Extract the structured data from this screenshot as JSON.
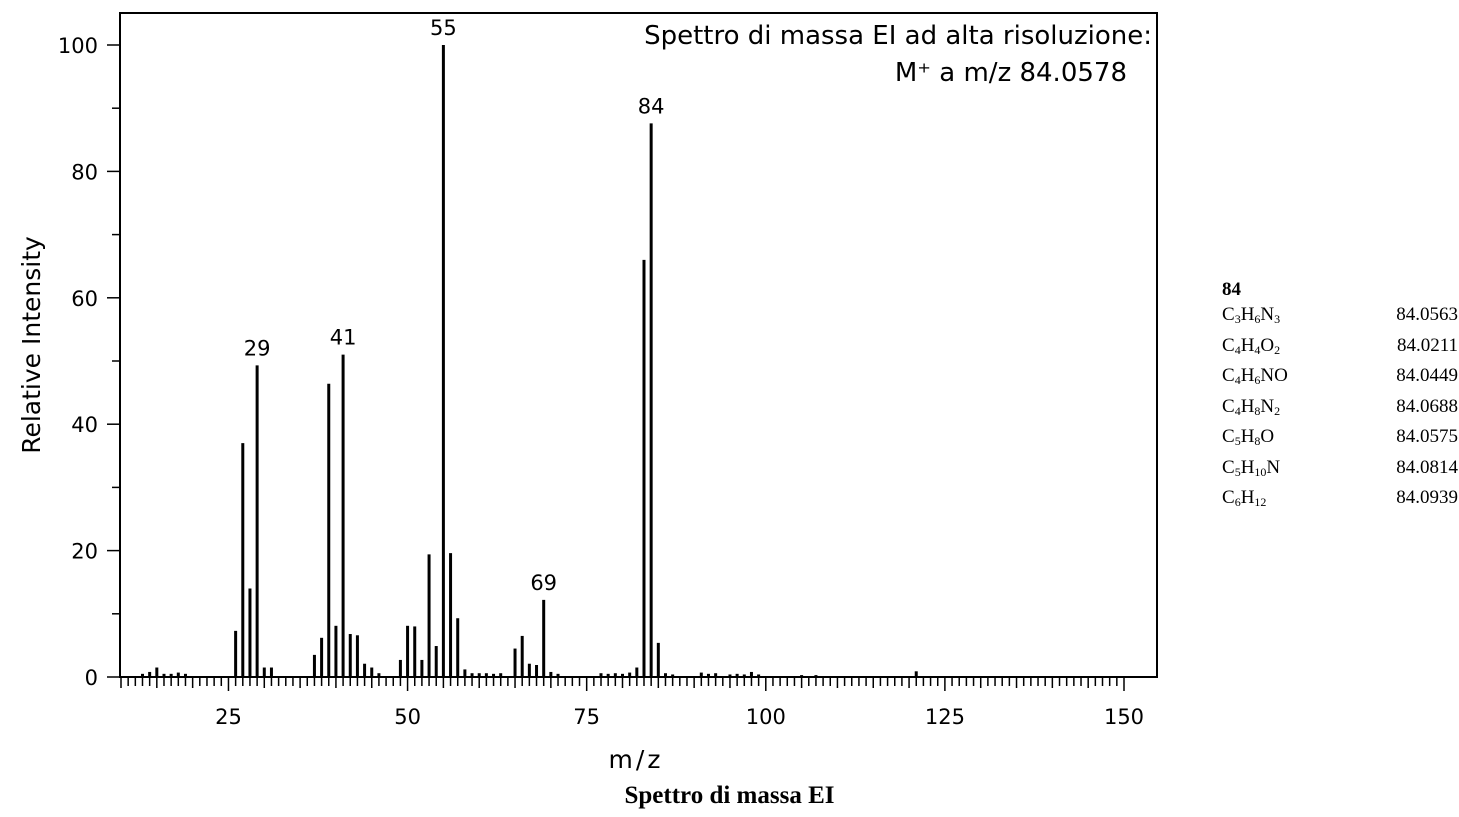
{
  "chart_data": {
    "type": "bar",
    "title": "Spettro di massa EI ad alta risoluzione:",
    "subtitle": "M⁺ a  m/z 84.0578",
    "xlabel": "m/z",
    "ylabel": "Relative Intensity",
    "xlim": [
      10,
      150
    ],
    "ylim": [
      0,
      105
    ],
    "x_ticks": [
      25,
      50,
      75,
      100,
      125,
      150
    ],
    "y_ticks": [
      0,
      20,
      40,
      60,
      80,
      100
    ],
    "grid": false,
    "series": [
      {
        "x": [
          13,
          14,
          15,
          16,
          17,
          18,
          19,
          26,
          27,
          28,
          29,
          30,
          31,
          37,
          38,
          39,
          40,
          41,
          42,
          43,
          44,
          45,
          46,
          49,
          50,
          51,
          52,
          53,
          54,
          55,
          56,
          57,
          58,
          59,
          60,
          61,
          62,
          63,
          65,
          66,
          67,
          68,
          69,
          70,
          71,
          77,
          78,
          79,
          80,
          81,
          82,
          83,
          84,
          85,
          86,
          87,
          91,
          92,
          93,
          95,
          96,
          97,
          98,
          99,
          105,
          107,
          121
        ],
        "values": [
          0.5,
          0.8,
          1.5,
          0.5,
          0.5,
          0.7,
          0.5,
          7.3,
          37.0,
          14.0,
          49.3,
          1.5,
          1.5,
          3.5,
          6.2,
          46.4,
          8.1,
          51.0,
          6.8,
          6.6,
          2.1,
          1.5,
          0.6,
          2.7,
          8.1,
          8.0,
          2.7,
          19.4,
          4.9,
          100,
          19.6,
          9.3,
          1.2,
          0.6,
          0.6,
          0.6,
          0.5,
          0.6,
          4.5,
          6.5,
          2.1,
          1.9,
          12.2,
          0.8,
          0.5,
          0.6,
          0.5,
          0.6,
          0.5,
          0.7,
          1.5,
          66.0,
          87.6,
          5.4,
          0.6,
          0.4,
          0.7,
          0.5,
          0.6,
          0.4,
          0.5,
          0.4,
          0.8,
          0.4,
          0.3,
          0.3,
          0.9
        ]
      }
    ],
    "peak_labels": [
      {
        "x": 29,
        "y": 49.3,
        "text": "29"
      },
      {
        "x": 41,
        "y": 51.0,
        "text": "41"
      },
      {
        "x": 55,
        "y": 100,
        "text": "55"
      },
      {
        "x": 69,
        "y": 12.2,
        "text": "69"
      },
      {
        "x": 84,
        "y": 87.6,
        "text": "84"
      }
    ],
    "caption": "Spettro di massa EI",
    "formula_table": {
      "title": "84",
      "rows": [
        {
          "formula": "C3H6N3",
          "mass": "84.0563"
        },
        {
          "formula": "C4H4O2",
          "mass": "84.0211"
        },
        {
          "formula": "C4H6NO",
          "mass": "84.0449"
        },
        {
          "formula": "C4H8N2",
          "mass": "84.0688"
        },
        {
          "formula": "C5H8O",
          "mass": "84.0575"
        },
        {
          "formula": "C5H10N",
          "mass": "84.0814"
        },
        {
          "formula": "C6H12",
          "mass": "84.0939"
        }
      ]
    }
  }
}
